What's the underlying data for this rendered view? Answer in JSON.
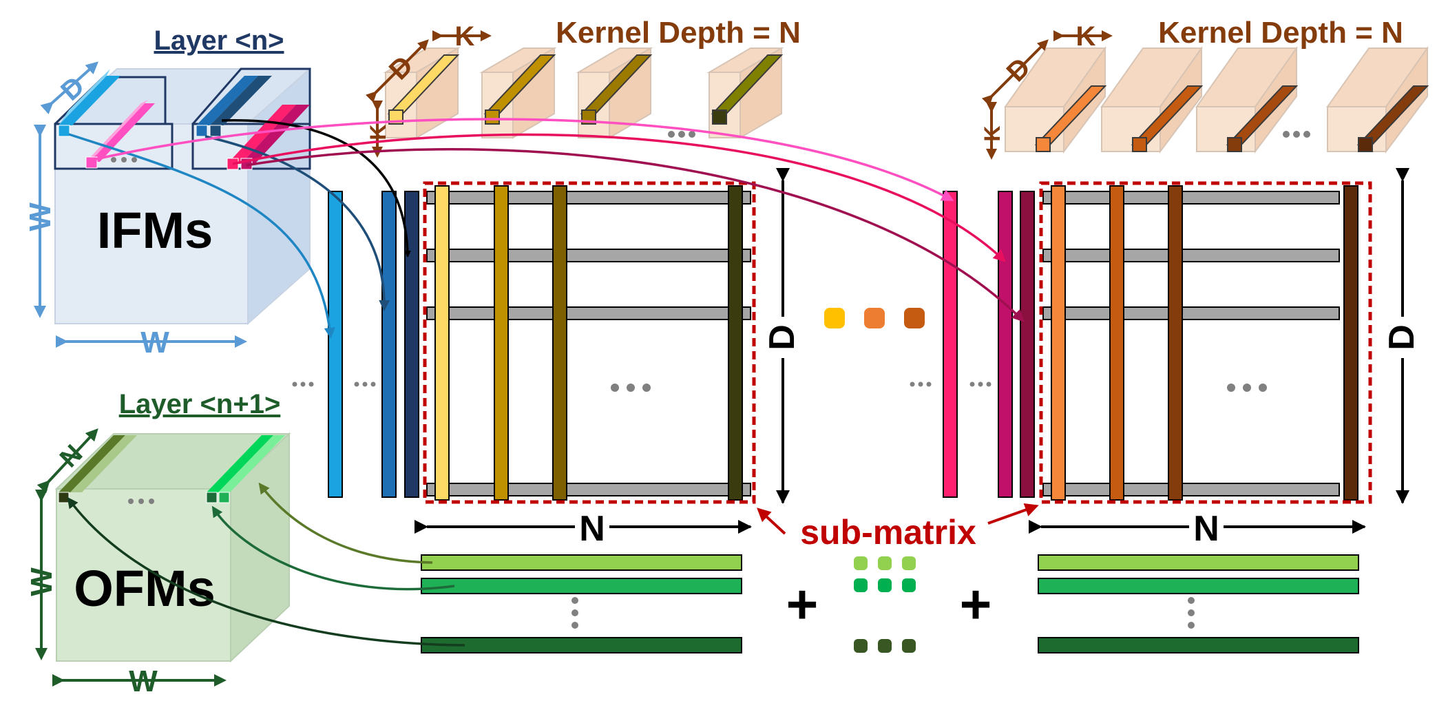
{
  "labels": {
    "layer_n": "Layer <n>",
    "layer_n1": "Layer <n+1>",
    "ifms": "IFMs",
    "ofms": "OFMs",
    "kernel_depth_left": "Kernel Depth = N",
    "kernel_depth_right": "Kernel Depth = N",
    "d": "D",
    "k": "K",
    "w": "W",
    "n": "N",
    "submatrix": "sub-matrix",
    "plus": "+"
  },
  "colors": {
    "ifm_blue": "#5b9bd5",
    "layer_n_navy": "#1f3864",
    "layer_n1_green": "#1e5c2a",
    "kernel_brown": "#843c0c",
    "submatrix_red": "#c00000",
    "grey_bar": "#a6a6a6",
    "left_kernel_columns": [
      "#ffd966",
      "#bf9000",
      "#7f6000",
      "#3b3b10"
    ],
    "left_ifm_columns": [
      "#1aa3e0",
      "#1f6fb5",
      "#1f3864"
    ],
    "right_kernel_columns": [
      "#f4873a",
      "#c55a11",
      "#843c0c",
      "#5a2a0a"
    ],
    "right_ifm_columns": [
      "#ff1f6f",
      "#c0106a",
      "#8b1040"
    ],
    "output_rows": [
      "#92d050",
      "#1fb155",
      "#1d6b2e"
    ],
    "middle_dots": [
      "#ffc000",
      "#ed7d31",
      "#c55a11"
    ],
    "plus_dots_rows": [
      [
        "#92d050",
        "#92d050",
        "#92d050"
      ],
      [
        "#00b050",
        "#00b050",
        "#00b050"
      ],
      [
        "#385723",
        "#385723",
        "#385723"
      ]
    ]
  }
}
